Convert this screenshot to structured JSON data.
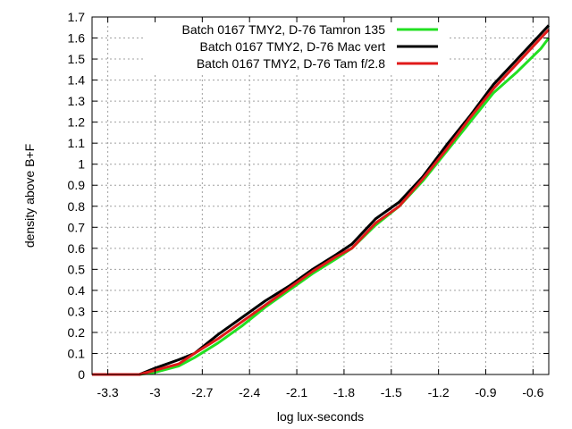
{
  "chart_data": {
    "type": "line",
    "title": "",
    "xlabel": "log lux-seconds",
    "ylabel": "density above B+F",
    "xlim": [
      -3.4,
      -0.5
    ],
    "ylim": [
      0,
      1.7
    ],
    "x_ticks": [
      -3.3,
      -3,
      -2.7,
      -2.4,
      -2.1,
      -1.8,
      -1.5,
      -1.2,
      -0.9,
      -0.6
    ],
    "x_tick_labels": [
      "-3.3",
      "-3",
      "-2.7",
      "-2.4",
      "-2.1",
      "-1.8",
      "-1.5",
      "-1.2",
      "-0.9",
      "-0.6"
    ],
    "y_ticks": [
      0,
      0.1,
      0.2,
      0.3,
      0.4,
      0.5,
      0.6,
      0.7,
      0.8,
      0.9,
      1,
      1.1,
      1.2,
      1.3,
      1.4,
      1.5,
      1.6,
      1.7
    ],
    "y_tick_labels": [
      "0",
      "0.1",
      "0.2",
      "0.3",
      "0.4",
      "0.5",
      "0.6",
      "0.7",
      "0.8",
      "0.9",
      "1",
      "1.1",
      "1.2",
      "1.3",
      "1.4",
      "1.5",
      "1.6",
      "1.7"
    ],
    "grid": true,
    "legend_position": "top-right",
    "series": [
      {
        "name": "Batch 0167 TMY2, D-76 Tamron 135",
        "color": "#22e022",
        "x": [
          -3.4,
          -3.1,
          -3.0,
          -2.85,
          -2.75,
          -2.6,
          -2.45,
          -2.3,
          -2.15,
          -2.0,
          -1.85,
          -1.75,
          -1.6,
          -1.45,
          -1.3,
          -1.15,
          -1.0,
          -0.85,
          -0.7,
          -0.55,
          -0.5
        ],
        "y": [
          0,
          0,
          0.01,
          0.04,
          0.08,
          0.15,
          0.23,
          0.32,
          0.4,
          0.48,
          0.55,
          0.6,
          0.71,
          0.8,
          0.92,
          1.06,
          1.2,
          1.34,
          1.44,
          1.55,
          1.6
        ]
      },
      {
        "name": "Batch 0167 TMY2, D-76 Mac vert",
        "color": "#000000",
        "x": [
          -3.4,
          -3.1,
          -3.0,
          -2.85,
          -2.75,
          -2.6,
          -2.45,
          -2.3,
          -2.15,
          -2.0,
          -1.85,
          -1.75,
          -1.6,
          -1.45,
          -1.3,
          -1.15,
          -1.0,
          -0.85,
          -0.7,
          -0.55,
          -0.5
        ],
        "y": [
          0,
          0,
          0.03,
          0.07,
          0.1,
          0.19,
          0.27,
          0.35,
          0.42,
          0.5,
          0.57,
          0.62,
          0.74,
          0.82,
          0.94,
          1.09,
          1.23,
          1.38,
          1.5,
          1.62,
          1.66
        ]
      },
      {
        "name": "Batch 0167 TMY2, D-76 Tam f/2.8",
        "color": "#e01a1a",
        "x": [
          -3.4,
          -3.1,
          -3.0,
          -2.85,
          -2.75,
          -2.6,
          -2.45,
          -2.3,
          -2.15,
          -2.0,
          -1.85,
          -1.75,
          -1.6,
          -1.45,
          -1.3,
          -1.15,
          -1.0,
          -0.85,
          -0.7,
          -0.55,
          -0.5
        ],
        "y": [
          0,
          0,
          0.02,
          0.05,
          0.1,
          0.17,
          0.25,
          0.33,
          0.41,
          0.49,
          0.56,
          0.6,
          0.72,
          0.8,
          0.93,
          1.07,
          1.22,
          1.36,
          1.48,
          1.6,
          1.64
        ]
      }
    ]
  }
}
